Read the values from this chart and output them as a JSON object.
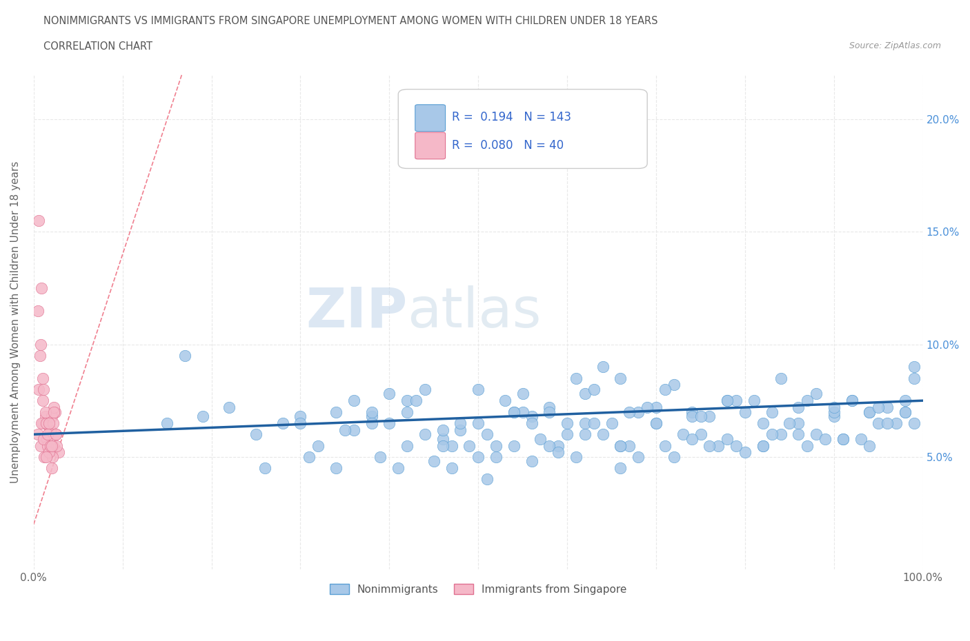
{
  "title_line1": "NONIMMIGRANTS VS IMMIGRANTS FROM SINGAPORE UNEMPLOYMENT AMONG WOMEN WITH CHILDREN UNDER 18 YEARS",
  "title_line2": "CORRELATION CHART",
  "source_text": "Source: ZipAtlas.com",
  "ylabel": "Unemployment Among Women with Children Under 18 years",
  "xlim": [
    0,
    100
  ],
  "ylim": [
    0,
    22
  ],
  "ytick_positions": [
    5,
    10,
    15,
    20
  ],
  "ytick_labels": [
    "5.0%",
    "10.0%",
    "15.0%",
    "20.0%"
  ],
  "R_nonimm": 0.194,
  "N_nonimm": 143,
  "R_imm": 0.08,
  "N_imm": 40,
  "color_nonimm": "#a8c8e8",
  "color_nonimm_edge": "#5a9fd4",
  "color_nonimm_line": "#2060a0",
  "color_imm": "#f5b8c8",
  "color_imm_edge": "#e07090",
  "color_imm_line": "#f08090",
  "color_grid": "#e8e8e8",
  "legend_label_nonimm": "Nonimmigrants",
  "legend_label_imm": "Immigrants from Singapore",
  "watermark_zip": "ZIP",
  "watermark_atlas": "atlas",
  "nonimm_x": [
    15.0,
    17.0,
    19.0,
    22.0,
    25.0,
    28.0,
    30.0,
    32.0,
    34.0,
    36.0,
    38.0,
    40.0,
    42.0,
    44.0,
    46.0,
    48.0,
    50.0,
    52.0,
    54.0,
    56.0,
    58.0,
    60.0,
    62.0,
    64.0,
    66.0,
    68.0,
    70.0,
    72.0,
    74.0,
    76.0,
    78.0,
    80.0,
    82.0,
    84.0,
    86.0,
    88.0,
    90.0,
    92.0,
    94.0,
    96.0,
    98.0,
    99.0,
    38.0,
    42.0,
    47.0,
    50.0,
    53.0,
    56.0,
    59.0,
    62.0,
    65.0,
    68.0,
    71.0,
    74.0,
    77.0,
    80.0,
    83.0,
    86.0,
    89.0,
    92.0,
    95.0,
    98.0,
    44.0,
    48.0,
    52.0,
    55.0,
    58.0,
    61.0,
    64.0,
    67.0,
    70.0,
    73.0,
    76.0,
    79.0,
    82.0,
    85.0,
    88.0,
    91.0,
    94.0,
    97.0,
    40.0,
    45.0,
    49.0,
    54.0,
    57.0,
    60.0,
    63.0,
    66.0,
    69.0,
    72.0,
    75.0,
    78.0,
    81.0,
    84.0,
    87.0,
    90.0,
    93.0,
    96.0,
    99.0,
    35.0,
    39.0,
    43.0,
    47.0,
    51.0,
    55.0,
    59.0,
    63.0,
    67.0,
    71.0,
    75.0,
    79.0,
    83.0,
    87.0,
    91.0,
    95.0,
    99.0,
    30.0,
    34.0,
    38.0,
    42.0,
    46.0,
    50.0,
    54.0,
    58.0,
    62.0,
    66.0,
    70.0,
    74.0,
    78.0,
    82.0,
    86.0,
    90.0,
    94.0,
    98.0,
    26.0,
    31.0,
    36.0,
    41.0,
    46.0,
    51.0,
    56.0,
    61.0,
    66.0
  ],
  "nonimm_y": [
    6.5,
    9.5,
    6.8,
    7.2,
    6.0,
    6.5,
    6.8,
    5.5,
    7.0,
    6.2,
    6.8,
    6.5,
    7.5,
    6.0,
    5.8,
    6.2,
    6.5,
    5.5,
    7.0,
    6.8,
    7.2,
    6.0,
    6.5,
    9.0,
    8.5,
    7.0,
    6.5,
    8.2,
    7.0,
    6.8,
    7.5,
    7.0,
    6.5,
    8.5,
    7.2,
    6.0,
    6.8,
    7.5,
    7.0,
    7.2,
    7.5,
    9.0,
    6.5,
    7.0,
    4.5,
    5.0,
    7.5,
    4.8,
    5.5,
    7.8,
    6.5,
    5.0,
    8.0,
    6.8,
    5.5,
    5.2,
    7.0,
    6.5,
    5.8,
    7.5,
    6.5,
    7.0,
    8.0,
    6.5,
    5.0,
    7.0,
    5.5,
    8.5,
    6.0,
    5.5,
    7.2,
    6.0,
    5.5,
    7.5,
    5.5,
    6.5,
    7.8,
    5.8,
    7.0,
    6.5,
    7.8,
    4.8,
    5.5,
    7.0,
    5.8,
    6.5,
    8.0,
    5.5,
    7.2,
    5.0,
    6.0,
    5.8,
    7.5,
    6.0,
    5.5,
    7.0,
    5.8,
    6.5,
    8.5,
    6.2,
    5.0,
    7.5,
    5.5,
    6.0,
    7.8,
    5.2,
    6.5,
    7.0,
    5.5,
    6.8,
    5.5,
    6.0,
    7.5,
    5.8,
    7.2,
    6.5,
    6.5,
    4.5,
    7.0,
    5.5,
    6.2,
    8.0,
    5.5,
    7.0,
    6.0,
    5.5,
    6.5,
    5.8,
    7.5,
    5.5,
    6.0,
    7.2,
    5.5,
    7.0,
    4.5,
    5.0,
    7.5,
    4.5,
    5.5,
    4.0,
    6.5,
    5.0,
    4.5
  ],
  "imm_x": [
    0.5,
    0.8,
    1.0,
    1.2,
    1.5,
    1.8,
    2.0,
    2.2,
    2.5,
    2.8,
    1.0,
    1.3,
    1.6,
    1.9,
    2.1,
    2.4,
    0.6,
    0.9,
    1.1,
    1.4,
    1.7,
    2.0,
    2.3,
    2.6,
    0.7,
    1.0,
    1.3,
    1.6,
    1.9,
    2.2,
    2.5,
    0.5,
    0.8,
    1.1,
    1.4,
    1.7,
    2.0,
    2.3,
    0.6,
    0.9
  ],
  "imm_y": [
    6.0,
    5.5,
    6.5,
    5.0,
    5.8,
    6.2,
    4.5,
    5.5,
    6.0,
    5.2,
    7.5,
    6.8,
    5.5,
    6.2,
    5.0,
    7.0,
    8.0,
    6.5,
    5.8,
    6.5,
    5.2,
    6.8,
    7.2,
    5.5,
    9.5,
    8.5,
    7.0,
    6.0,
    5.5,
    6.5,
    6.0,
    11.5,
    10.0,
    8.0,
    5.0,
    6.5,
    5.5,
    7.0,
    15.5,
    12.5
  ]
}
